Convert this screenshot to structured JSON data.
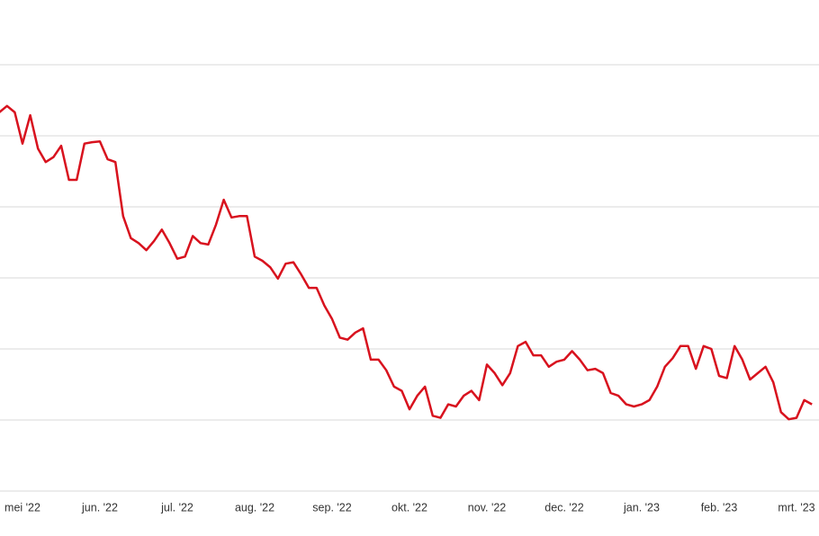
{
  "chart_data": {
    "type": "line",
    "categories": [
      null,
      null,
      null,
      "mei '22",
      null,
      null,
      null,
      null,
      null,
      null,
      null,
      null,
      null,
      "jun. '22",
      null,
      null,
      null,
      null,
      null,
      null,
      null,
      null,
      null,
      "jul. '22",
      null,
      null,
      null,
      null,
      null,
      null,
      null,
      null,
      null,
      "aug. '22",
      null,
      null,
      null,
      null,
      null,
      null,
      null,
      null,
      null,
      "sep. '22",
      null,
      null,
      null,
      null,
      null,
      null,
      null,
      null,
      null,
      "okt. '22",
      null,
      null,
      null,
      null,
      null,
      null,
      null,
      null,
      null,
      "nov. '22",
      null,
      null,
      null,
      null,
      null,
      null,
      null,
      null,
      null,
      "dec. '22",
      null,
      null,
      null,
      null,
      null,
      null,
      null,
      null,
      null,
      "jan. '23",
      null,
      null,
      null,
      null,
      null,
      null,
      null,
      null,
      null,
      "feb. '23",
      null,
      null,
      null,
      null,
      null,
      null,
      null,
      null,
      null,
      "mrt. '23",
      null,
      null
    ],
    "series": [
      {
        "color": "#d8121e",
        "values": [
          5.33,
          5.42,
          5.33,
          4.89,
          5.29,
          4.82,
          4.63,
          4.7,
          4.86,
          4.38,
          4.38,
          4.89,
          4.91,
          4.92,
          4.67,
          4.63,
          3.87,
          3.56,
          3.49,
          3.39,
          3.52,
          3.68,
          3.49,
          3.27,
          3.3,
          3.59,
          3.49,
          3.47,
          3.75,
          4.1,
          3.85,
          3.87,
          3.87,
          3.3,
          3.24,
          3.15,
          2.99,
          3.2,
          3.22,
          3.05,
          2.86,
          2.86,
          2.61,
          2.42,
          2.16,
          2.13,
          2.23,
          2.29,
          1.85,
          1.85,
          1.7,
          1.47,
          1.41,
          1.15,
          1.34,
          1.47,
          1.06,
          1.03,
          1.22,
          1.19,
          1.34,
          1.41,
          1.28,
          1.78,
          1.66,
          1.49,
          1.66,
          2.04,
          2.1,
          1.91,
          1.91,
          1.75,
          1.82,
          1.85,
          1.97,
          1.85,
          1.7,
          1.72,
          1.66,
          1.38,
          1.34,
          1.22,
          1.19,
          1.22,
          1.28,
          1.47,
          1.75,
          1.87,
          2.04,
          2.04,
          1.72,
          2.04,
          2.0,
          1.62,
          1.59,
          2.04,
          1.85,
          1.57,
          1.66,
          1.75,
          1.53,
          1.11,
          1.01,
          1.03,
          1.28,
          1.22
        ]
      }
    ],
    "ylim": [
      0,
      6
    ],
    "grid_lines": [
      0,
      1,
      2,
      3,
      4,
      5,
      6
    ]
  }
}
